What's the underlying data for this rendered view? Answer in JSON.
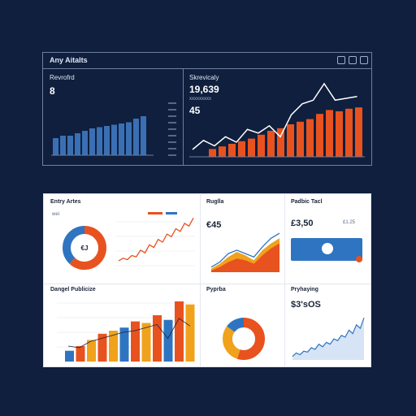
{
  "top_panel": {
    "title": "Any Aitalts",
    "left_chart": {
      "label": "Revrofrd",
      "value": "8",
      "bar_values": [
        14,
        16,
        16,
        18,
        20,
        22,
        23,
        24,
        25,
        26,
        27,
        30,
        32
      ],
      "color": "#3a6fb3",
      "tick_rows": 9
    },
    "right_chart": {
      "label": "Skrevicaly",
      "sub_label": "xxxxxxxxx",
      "value": "19,639",
      "sub_value": "45",
      "bar_values": [
        6,
        8,
        10,
        12,
        14,
        17,
        20,
        22,
        25,
        27,
        29,
        33,
        36,
        35,
        37,
        38
      ],
      "line_values": [
        8,
        18,
        12,
        22,
        16,
        30,
        26,
        34,
        22,
        46,
        58,
        62,
        80,
        62,
        64,
        66
      ],
      "bar_color": "#e8521f",
      "line_color": "#ffffff"
    }
  },
  "bottom_panel": {
    "cards": [
      {
        "title": "Entry Artes",
        "sub": "wei",
        "donut": {
          "center_label": "€J",
          "segments": [
            62,
            38
          ],
          "colors": [
            "#e8521f",
            "#2f74c0"
          ]
        },
        "line": [
          6,
          8,
          7,
          10,
          9,
          14,
          12,
          18,
          16,
          22,
          20,
          26,
          24,
          30,
          28,
          34,
          32,
          38
        ]
      },
      {
        "title": "Ruglla",
        "value": "€45",
        "area": {
          "series": [
            {
              "values": [
                4,
                10,
                18,
                24,
                20,
                14,
                26,
                34,
                40
              ],
              "color": "#f0a21c"
            },
            {
              "values": [
                2,
                6,
                12,
                16,
                14,
                10,
                20,
                28,
                34
              ],
              "color": "#e8521f"
            }
          ],
          "line": [
            6,
            12,
            22,
            26,
            22,
            18,
            30,
            40,
            46
          ],
          "line_color": "#2f74c0"
        }
      },
      {
        "title": "Padbic Tacl",
        "value": "£3,50",
        "value2": "£1.25",
        "banner_color": "#2f74c0"
      },
      {
        "title": "Dangel Publicize",
        "bars": [
          14,
          20,
          28,
          36,
          40,
          44,
          52,
          50,
          60,
          54,
          78,
          74
        ],
        "bar_colors": [
          "#2f74c0",
          "#e8521f",
          "#f0a21c",
          "#e8521f",
          "#f0a21c",
          "#2f74c0",
          "#e8521f",
          "#f0a21c",
          "#e8521f",
          "#2f74c0",
          "#e8521f",
          "#f0a21c"
        ],
        "line": [
          20,
          18,
          26,
          30,
          34,
          38,
          40,
          44,
          48,
          30,
          56,
          46
        ]
      },
      {
        "title": "Pyprba",
        "donut": {
          "segments": [
            55,
            30,
            15
          ],
          "colors": [
            "#e8521f",
            "#f0a21c",
            "#2f74c0"
          ]
        }
      },
      {
        "title": "Pryhaying",
        "value": "$3'sOS",
        "line": [
          4,
          8,
          6,
          10,
          9,
          14,
          12,
          18,
          15,
          20,
          18,
          24,
          22,
          28,
          26,
          34,
          30,
          40,
          36,
          48
        ]
      }
    ]
  }
}
